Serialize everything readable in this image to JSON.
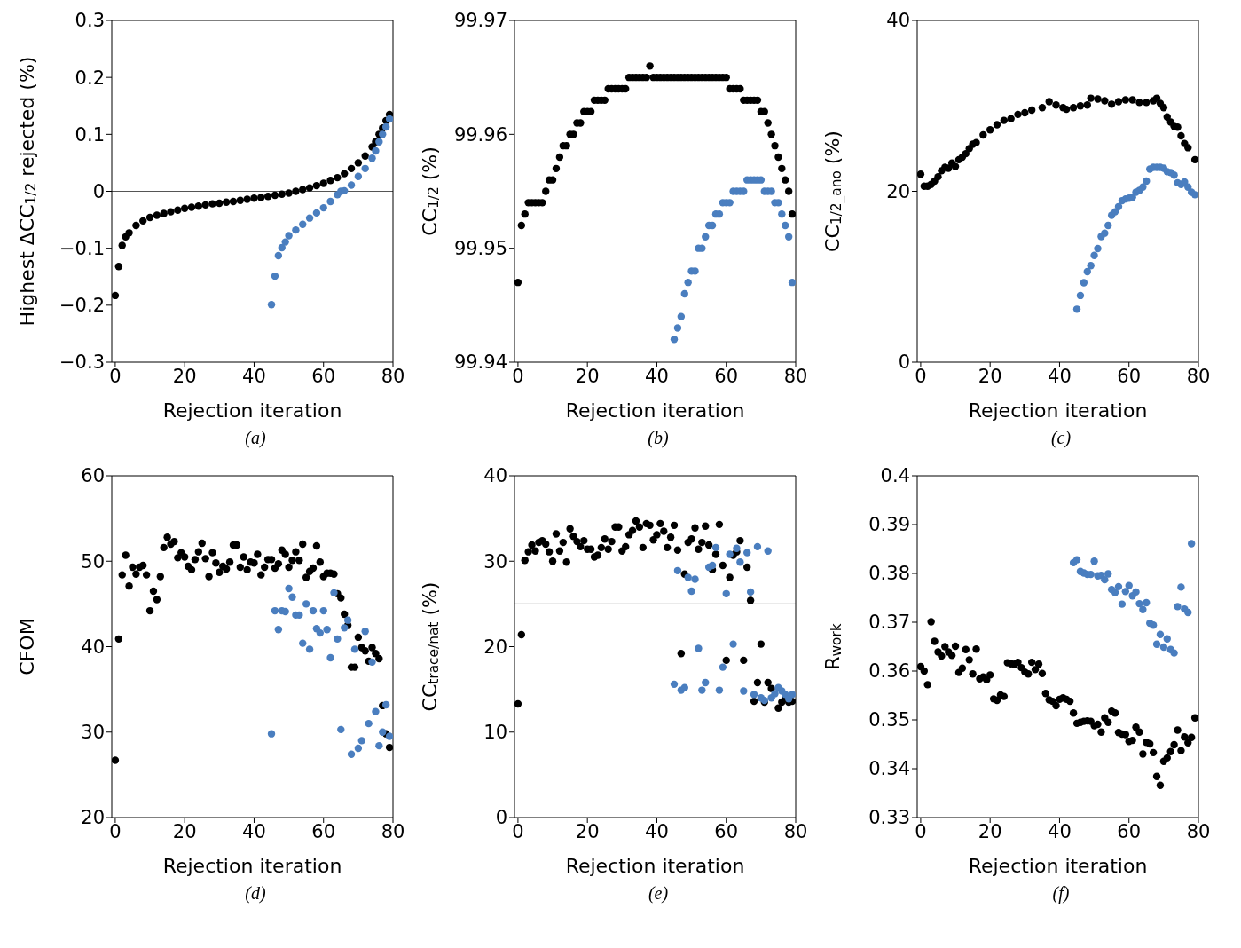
{
  "chart_data": [
    {
      "type": "scatter",
      "xlabel": "Rejection iteration",
      "ylabel": "Highest ΔCC$_{1/2}$ rejected (%)",
      "xlim": [
        -1,
        80
      ],
      "xticks": [
        0,
        20,
        40,
        60,
        80
      ],
      "ylim": [
        -0.3,
        0.3
      ],
      "yticks": [
        {
          "value": -0.3,
          "label": "−0.3"
        },
        {
          "value": -0.2,
          "label": "−0.2"
        },
        {
          "value": -0.1,
          "label": "−0.1"
        },
        0,
        0.1,
        0.2,
        0.3
      ],
      "marker": "circle",
      "ref_lines": [
        {
          "axis": "y",
          "value": 0,
          "color": "#555555"
        }
      ],
      "annotations": [
        "(a)"
      ],
      "series": [
        {
          "color": "#000000",
          "x": [
            0,
            1,
            2,
            3,
            4,
            6,
            8,
            10,
            12,
            14,
            16,
            18,
            20,
            22,
            24,
            26,
            28,
            30,
            32,
            34,
            36,
            38,
            40,
            42,
            44,
            46,
            48,
            50,
            52,
            54,
            56,
            58,
            60,
            62,
            64,
            66,
            68,
            70,
            72,
            74,
            75,
            76,
            77,
            78,
            79
          ],
          "values": [
            -0.183,
            -0.132,
            -0.095,
            -0.08,
            -0.073,
            -0.06,
            -0.052,
            -0.046,
            -0.042,
            -0.039,
            -0.036,
            -0.033,
            -0.03,
            -0.028,
            -0.026,
            -0.024,
            -0.022,
            -0.021,
            -0.019,
            -0.018,
            -0.016,
            -0.014,
            -0.012,
            -0.011,
            -0.009,
            -0.007,
            -0.005,
            -0.003,
            0,
            0.003,
            0.006,
            0.01,
            0.014,
            0.019,
            0.024,
            0.031,
            0.04,
            0.05,
            0.062,
            0.078,
            0.087,
            0.1,
            0.111,
            0.124,
            0.135
          ]
        },
        {
          "color": "#4a7ebf",
          "x": [
            45,
            46,
            47,
            48,
            49,
            50,
            52,
            54,
            56,
            58,
            60,
            62,
            64,
            65,
            66,
            68,
            70,
            72,
            74,
            75,
            76,
            77,
            78,
            79
          ],
          "values": [
            -0.199,
            -0.149,
            -0.113,
            -0.099,
            -0.089,
            -0.078,
            -0.068,
            -0.058,
            -0.047,
            -0.038,
            -0.029,
            -0.018,
            -0.006,
            0,
            0.001,
            0.011,
            0.026,
            0.04,
            0.058,
            0.071,
            0.087,
            0.1,
            0.113,
            0.127
          ]
        }
      ]
    },
    {
      "type": "scatter",
      "xlabel": "Rejection iteration",
      "ylabel": "CC$_{1/2}$ (%)",
      "xlim": [
        -1,
        80
      ],
      "xticks": [
        0,
        20,
        40,
        60,
        80
      ],
      "ylim": [
        99.94,
        99.97
      ],
      "yticks": [
        99.94,
        99.95,
        99.96,
        99.97
      ],
      "marker": "circle",
      "annotations": [
        "(b)"
      ],
      "series": [
        {
          "color": "#000000",
          "x": [
            0,
            1,
            2,
            3,
            4,
            5,
            6,
            7,
            8,
            9,
            10,
            11,
            12,
            13,
            14,
            15,
            16,
            17,
            18,
            19,
            20,
            21,
            22,
            23,
            24,
            25,
            26,
            27,
            28,
            29,
            30,
            31,
            32,
            33,
            34,
            35,
            36,
            37,
            38,
            39,
            40,
            41,
            42,
            43,
            44,
            45,
            46,
            47,
            48,
            49,
            50,
            51,
            52,
            53,
            54,
            55,
            56,
            57,
            58,
            59,
            60,
            61,
            62,
            63,
            64,
            65,
            66,
            67,
            68,
            69,
            70,
            71,
            72,
            73,
            74,
            75,
            76,
            77,
            78,
            79
          ],
          "values": [
            99.947,
            99.952,
            99.953,
            99.954,
            99.954,
            99.954,
            99.954,
            99.954,
            99.955,
            99.956,
            99.956,
            99.957,
            99.958,
            99.959,
            99.959,
            99.96,
            99.96,
            99.961,
            99.961,
            99.962,
            99.962,
            99.962,
            99.963,
            99.963,
            99.963,
            99.963,
            99.964,
            99.964,
            99.964,
            99.964,
            99.964,
            99.964,
            99.965,
            99.965,
            99.965,
            99.965,
            99.965,
            99.965,
            99.966,
            99.965,
            99.965,
            99.965,
            99.965,
            99.965,
            99.965,
            99.965,
            99.965,
            99.965,
            99.965,
            99.965,
            99.965,
            99.965,
            99.965,
            99.965,
            99.965,
            99.965,
            99.965,
            99.965,
            99.965,
            99.965,
            99.965,
            99.964,
            99.964,
            99.964,
            99.964,
            99.963,
            99.963,
            99.963,
            99.963,
            99.963,
            99.962,
            99.962,
            99.961,
            99.96,
            99.959,
            99.958,
            99.957,
            99.956,
            99.955,
            99.953
          ]
        },
        {
          "color": "#4a7ebf",
          "x": [
            45,
            46,
            47,
            48,
            49,
            50,
            51,
            52,
            53,
            54,
            55,
            56,
            57,
            58,
            59,
            60,
            61,
            62,
            63,
            64,
            65,
            66,
            67,
            68,
            69,
            70,
            71,
            72,
            73,
            74,
            75,
            76,
            77,
            78,
            79
          ],
          "values": [
            99.942,
            99.943,
            99.944,
            99.946,
            99.947,
            99.948,
            99.948,
            99.95,
            99.95,
            99.951,
            99.952,
            99.952,
            99.953,
            99.953,
            99.954,
            99.954,
            99.954,
            99.955,
            99.955,
            99.955,
            99.955,
            99.956,
            99.956,
            99.956,
            99.956,
            99.956,
            99.955,
            99.955,
            99.955,
            99.954,
            99.954,
            99.953,
            99.952,
            99.951,
            99.947
          ]
        }
      ]
    },
    {
      "type": "scatter",
      "xlabel": "Rejection iteration",
      "ylabel": "CC$_{1/2_ano}$ (%)",
      "xlim": [
        -1,
        80
      ],
      "xticks": [
        0,
        20,
        40,
        60,
        80
      ],
      "ylim": [
        0,
        40
      ],
      "yticks": [
        0,
        20,
        40
      ],
      "marker": "circle",
      "annotations": [
        "(c)"
      ],
      "series": [
        {
          "color": "#000000",
          "x": [
            0,
            1,
            2,
            3,
            4,
            5,
            6,
            7,
            8,
            9,
            10,
            11,
            12,
            13,
            14,
            15,
            16,
            18,
            20,
            22,
            24,
            26,
            28,
            30,
            32,
            35,
            37,
            39,
            41,
            42,
            44,
            46,
            48,
            49,
            51,
            53,
            55,
            57,
            59,
            61,
            63,
            65,
            67,
            68,
            69,
            70,
            71,
            72,
            73,
            74,
            75,
            76,
            77,
            79
          ],
          "values": [
            22.0,
            20.6,
            20.6,
            20.8,
            21.2,
            21.7,
            22.4,
            22.8,
            22.7,
            23.3,
            22.9,
            23.7,
            24.0,
            24.4,
            25.0,
            25.5,
            25.7,
            26.6,
            27.2,
            27.8,
            28.3,
            28.5,
            29.0,
            29.2,
            29.5,
            29.8,
            30.5,
            30.1,
            29.8,
            29.6,
            29.8,
            30.0,
            30.1,
            30.9,
            30.8,
            30.6,
            30.2,
            30.5,
            30.7,
            30.7,
            30.4,
            30.4,
            30.6,
            30.9,
            30.3,
            29.8,
            28.7,
            28.1,
            27.6,
            27.5,
            26.5,
            25.6,
            25.1,
            23.7
          ]
        },
        {
          "color": "#4a7ebf",
          "x": [
            45,
            46,
            47,
            48,
            49,
            50,
            51,
            52,
            53,
            54,
            55,
            56,
            57,
            58,
            59,
            60,
            61,
            62,
            63,
            64,
            65,
            66,
            67,
            68,
            69,
            70,
            71,
            72,
            73,
            74,
            75,
            76,
            77,
            78,
            79
          ],
          "values": [
            6.2,
            7.8,
            9.3,
            10.6,
            11.3,
            12.5,
            13.3,
            14.7,
            15.1,
            16.0,
            17.2,
            17.6,
            18.2,
            18.9,
            19.1,
            19.2,
            19.3,
            19.9,
            20.1,
            20.5,
            21.2,
            22.6,
            22.8,
            22.8,
            22.8,
            22.7,
            22.3,
            22.2,
            21.9,
            21.0,
            20.8,
            21.1,
            20.5,
            19.9,
            19.6
          ]
        }
      ]
    },
    {
      "type": "scatter",
      "xlabel": "Rejection iteration",
      "ylabel": "CFOM",
      "xlim": [
        -1,
        80
      ],
      "xticks": [
        0,
        20,
        40,
        60,
        80
      ],
      "ylim": [
        20,
        60
      ],
      "yticks": [
        20,
        30,
        40,
        50,
        60
      ],
      "marker": "circle",
      "annotations": [
        "(d)"
      ],
      "series": [
        {
          "color": "#000000",
          "x": [
            0,
            1,
            2,
            3,
            4,
            5,
            6,
            7,
            8,
            9,
            10,
            11,
            12,
            13,
            14,
            15,
            16,
            17,
            18,
            19,
            20,
            21,
            22,
            23,
            24,
            25,
            26,
            27,
            28,
            29,
            30,
            31,
            32,
            33,
            34,
            35,
            36,
            37,
            38,
            39,
            40,
            41,
            42,
            43,
            44,
            45,
            46,
            47,
            48,
            49,
            50,
            51,
            52,
            53,
            54,
            55,
            56,
            57,
            58,
            59,
            60,
            61,
            62,
            63,
            64,
            65,
            66,
            67,
            68,
            69,
            70,
            71,
            72,
            73,
            74,
            75,
            76,
            77,
            78,
            79
          ],
          "values": [
            26.7,
            40.9,
            48.4,
            50.7,
            47.1,
            49.3,
            48.5,
            49.3,
            49.5,
            48.4,
            44.2,
            46.5,
            45.5,
            48.2,
            51.6,
            52.8,
            52.0,
            52.3,
            50.4,
            51.0,
            50.5,
            49.4,
            49.0,
            50.2,
            51.1,
            52.1,
            50.3,
            48.2,
            51.0,
            49.8,
            48.7,
            49.4,
            49.1,
            49.9,
            51.9,
            51.9,
            49.3,
            50.5,
            49.0,
            49.9,
            49.8,
            50.8,
            48.4,
            49.3,
            50.2,
            50.2,
            49.2,
            49.7,
            51.3,
            50.8,
            49.3,
            50.1,
            51.1,
            50.1,
            52.0,
            48.1,
            48.8,
            49.2,
            51.8,
            49.9,
            48.2,
            48.6,
            48.6,
            48.5,
            46.2,
            45.7,
            43.8,
            42.5,
            37.6,
            37.6,
            41.1,
            39.9,
            39.5,
            38.3,
            39.9,
            39.2,
            38.6,
            33.1,
            29.8,
            28.2
          ]
        },
        {
          "color": "#4a7ebf",
          "x": [
            45,
            46,
            47,
            48,
            49,
            50,
            51,
            52,
            53,
            54,
            55,
            56,
            57,
            58,
            59,
            60,
            61,
            62,
            63,
            64,
            65,
            66,
            67,
            68,
            69,
            70,
            71,
            72,
            73,
            74,
            75,
            76,
            77,
            78,
            79
          ],
          "values": [
            29.8,
            44.2,
            42.0,
            44.2,
            44.1,
            46.8,
            45.8,
            43.7,
            43.7,
            40.4,
            45.0,
            39.7,
            44.2,
            42.1,
            41.6,
            44.2,
            42.0,
            38.7,
            46.3,
            40.9,
            30.3,
            42.2,
            43.1,
            27.4,
            39.7,
            28.1,
            29.0,
            41.8,
            31.0,
            38.2,
            32.4,
            28.4,
            30.0,
            33.2,
            29.5
          ]
        }
      ]
    },
    {
      "type": "scatter",
      "xlabel": "Rejection iteration",
      "ylabel": "CC$_{trace/nat}$ (%)",
      "xlim": [
        -1,
        80
      ],
      "xticks": [
        0,
        20,
        40,
        60,
        80
      ],
      "ylim": [
        0,
        40
      ],
      "yticks": [
        0,
        10,
        20,
        30,
        40
      ],
      "marker": "circle",
      "ref_lines": [
        {
          "axis": "y",
          "value": 25,
          "color": "#555555"
        }
      ],
      "annotations": [
        "(e)"
      ],
      "series": [
        {
          "color": "#000000",
          "x": [
            0,
            1,
            2,
            3,
            4,
            5,
            6,
            7,
            8,
            9,
            10,
            11,
            12,
            13,
            14,
            15,
            16,
            17,
            18,
            19,
            20,
            21,
            22,
            23,
            24,
            25,
            26,
            27,
            28,
            29,
            30,
            31,
            32,
            33,
            34,
            35,
            36,
            37,
            38,
            39,
            40,
            41,
            42,
            43,
            44,
            45,
            46,
            47,
            48,
            49,
            50,
            51,
            52,
            53,
            54,
            55,
            56,
            57,
            58,
            59,
            60,
            61,
            62,
            63,
            64,
            65,
            66,
            67,
            68,
            69,
            70,
            71,
            72,
            73,
            74,
            75,
            76,
            77,
            78,
            79
          ],
          "values": [
            13.3,
            21.4,
            30.1,
            31.1,
            31.9,
            31.2,
            32.2,
            32.4,
            32.0,
            31.1,
            30.0,
            33.2,
            31.2,
            32.2,
            29.9,
            33.8,
            32.9,
            32.3,
            31.7,
            32.4,
            31.4,
            31.4,
            30.5,
            30.7,
            31.6,
            32.6,
            31.4,
            32.3,
            34.0,
            34.0,
            31.2,
            31.7,
            33.1,
            33.6,
            34.7,
            34.0,
            31.6,
            34.4,
            34.2,
            32.5,
            33.1,
            34.4,
            33.5,
            31.6,
            32.8,
            34.2,
            31.3,
            19.2,
            28.5,
            32.2,
            32.6,
            33.9,
            31.4,
            32.2,
            34.1,
            31.9,
            29.0,
            30.8,
            34.3,
            29.5,
            18.4,
            28.1,
            30.7,
            31.1,
            32.4,
            18.4,
            29.3,
            25.4,
            13.6,
            15.8,
            20.3,
            13.5,
            15.8,
            15.1,
            null,
            12.8,
            13.5,
            14.1,
            13.5,
            13.6
          ]
        },
        {
          "color": "#4a7ebf",
          "x": [
            45,
            46,
            47,
            48,
            49,
            50,
            51,
            52,
            53,
            54,
            55,
            56,
            57,
            58,
            59,
            60,
            61,
            62,
            63,
            64,
            65,
            66,
            67,
            68,
            69,
            70,
            71,
            72,
            73,
            74,
            75,
            76,
            77,
            78,
            79
          ],
          "values": [
            15.6,
            28.9,
            14.9,
            15.2,
            28.1,
            26.5,
            27.9,
            19.8,
            14.9,
            15.8,
            29.3,
            29.5,
            31.6,
            14.9,
            17.6,
            26.2,
            30.8,
            20.3,
            31.5,
            29.9,
            14.8,
            31.0,
            26.4,
            14.4,
            31.7,
            14.0,
            13.7,
            31.2,
            14.0,
            14.5,
            15.2,
            14.8,
            14.4,
            13.9,
            14.4
          ]
        }
      ]
    },
    {
      "type": "scatter",
      "xlabel": "Rejection iteration",
      "ylabel": "R$_{work}$",
      "xlim": [
        -1,
        80
      ],
      "xticks": [
        0,
        20,
        40,
        60,
        80
      ],
      "ylim": [
        0.33,
        0.4
      ],
      "yticks": [
        0.33,
        0.34,
        0.35,
        0.36,
        0.37,
        0.38,
        0.39,
        0.4
      ],
      "marker": "circle",
      "annotations": [
        "(f)"
      ],
      "series": [
        {
          "color": "#000000",
          "x": [
            0,
            1,
            2,
            3,
            4,
            5,
            6,
            7,
            8,
            9,
            10,
            11,
            12,
            13,
            14,
            15,
            16,
            17,
            18,
            19,
            20,
            21,
            22,
            23,
            24,
            25,
            26,
            27,
            28,
            29,
            30,
            31,
            32,
            33,
            34,
            35,
            36,
            37,
            38,
            39,
            40,
            41,
            42,
            43,
            44,
            45,
            46,
            47,
            48,
            49,
            50,
            51,
            52,
            53,
            54,
            55,
            56,
            57,
            58,
            59,
            60,
            61,
            62,
            63,
            64,
            65,
            66,
            67,
            68,
            69,
            70,
            71,
            72,
            73,
            74,
            75,
            76,
            77,
            78,
            79
          ],
          "values": [
            0.3609,
            0.36,
            0.3572,
            0.3701,
            0.3661,
            0.3639,
            0.3631,
            0.365,
            0.3639,
            0.3632,
            0.3651,
            0.3597,
            0.3606,
            0.3644,
            0.3623,
            0.3594,
            0.3645,
            0.3584,
            0.3588,
            0.3582,
            0.3592,
            0.3543,
            0.354,
            0.3551,
            0.3548,
            0.3617,
            0.3615,
            0.3614,
            0.3618,
            0.3607,
            0.3598,
            0.3594,
            0.3618,
            0.3603,
            0.3614,
            0.3595,
            0.3554,
            0.3541,
            0.3538,
            0.3529,
            0.3542,
            0.3545,
            0.3542,
            0.3538,
            0.3514,
            0.3493,
            0.3495,
            0.3497,
            0.3498,
            0.3497,
            0.3488,
            0.3491,
            0.3475,
            0.3504,
            0.3495,
            0.3518,
            0.3514,
            0.3474,
            0.3471,
            0.347,
            0.3456,
            0.3458,
            0.3485,
            0.3475,
            0.343,
            0.3454,
            0.3451,
            0.3433,
            0.3384,
            0.3366,
            0.3415,
            0.3422,
            0.3435,
            0.3449,
            0.3479,
            0.3437,
            0.3465,
            0.3453,
            0.3464,
            0.3504
          ]
        },
        {
          "color": "#4a7ebf",
          "x": [
            44,
            45,
            46,
            47,
            48,
            49,
            50,
            51,
            52,
            53,
            54,
            55,
            56,
            57,
            58,
            59,
            60,
            61,
            62,
            63,
            64,
            65,
            66,
            67,
            68,
            69,
            70,
            71,
            72,
            73,
            74,
            75,
            76,
            77,
            78
          ],
          "values": [
            0.3822,
            0.3828,
            0.3804,
            0.3801,
            0.3798,
            0.3798,
            0.3825,
            0.3795,
            0.3796,
            0.3787,
            0.3799,
            0.3767,
            0.3761,
            0.3773,
            0.3737,
            0.3763,
            0.3775,
            0.3754,
            0.3762,
            0.3738,
            0.3726,
            0.374,
            0.3698,
            0.3694,
            0.3655,
            0.3675,
            0.3649,
            0.3666,
            0.3644,
            0.3637,
            0.3732,
            0.3772,
            0.3727,
            0.372,
            0.3861
          ]
        }
      ]
    }
  ]
}
